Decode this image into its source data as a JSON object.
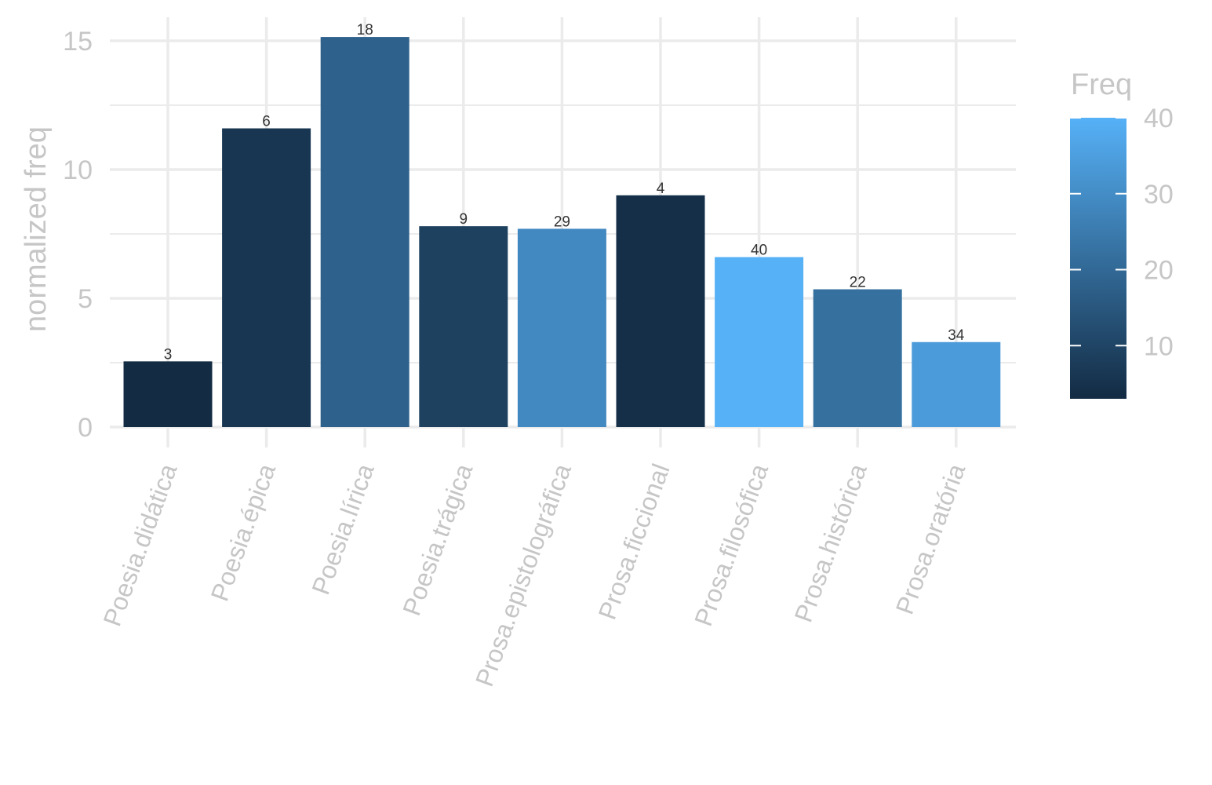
{
  "chart_data": {
    "type": "bar",
    "categories": [
      "Poesia.didática",
      "Poesia.épica",
      "Poesia.lírica",
      "Poesia.trágica",
      "Prosa.epistolográfica",
      "Prosa.ficcional",
      "Prosa.filosófica",
      "Prosa.histórica",
      "Prosa.oratória"
    ],
    "values": [
      2.55,
      11.6,
      15.15,
      7.8,
      7.7,
      9.0,
      6.6,
      5.35,
      3.3
    ],
    "freq": [
      3,
      6,
      18,
      9,
      29,
      4,
      40,
      22,
      34
    ],
    "bar_labels": [
      "3",
      "6",
      "18",
      "9",
      "29",
      "4",
      "40",
      "22",
      "34"
    ],
    "ylabel": "normalized freq",
    "xlabel": "",
    "ylim": [
      0,
      15
    ],
    "yticks": [
      "0",
      "5",
      "10",
      "15"
    ],
    "grid": true,
    "legend": {
      "title": "Freq",
      "placement": "right",
      "ticks": [
        "10",
        "20",
        "30",
        "40"
      ],
      "range": [
        3,
        40
      ],
      "color_low": "#132B43",
      "color_high": "#56B1F7"
    }
  }
}
